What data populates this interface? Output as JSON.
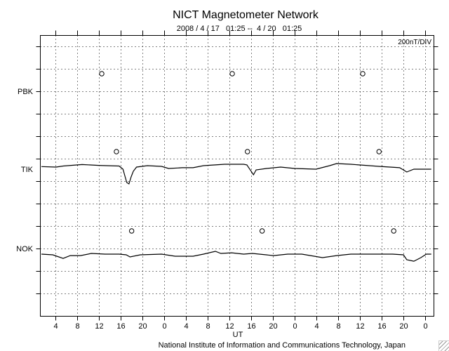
{
  "chart_data": {
    "type": "line",
    "title": "NICT Magnetometer Network",
    "subtitle": "2008 / 4 / 17   01:25 --  4 / 20   01:25",
    "scale_label": "200nT/DIV",
    "xlabel": "UT",
    "credit": "National Institute of Information and Communications Technology, Japan",
    "x_unit": "hours since 2008-04-17 01:25 UT",
    "xlim": [
      0,
      72
    ],
    "y_unit": "nT",
    "nT_per_div": 200,
    "grid": true,
    "x_ticks": [
      {
        "t": 2.583,
        "label": "4"
      },
      {
        "t": 6.583,
        "label": "8"
      },
      {
        "t": 10.583,
        "label": "12"
      },
      {
        "t": 14.583,
        "label": "16"
      },
      {
        "t": 18.583,
        "label": "20"
      },
      {
        "t": 22.583,
        "label": "0"
      },
      {
        "t": 26.583,
        "label": "4"
      },
      {
        "t": 30.583,
        "label": "8"
      },
      {
        "t": 34.583,
        "label": "12"
      },
      {
        "t": 38.583,
        "label": "16"
      },
      {
        "t": 42.583,
        "label": "20"
      },
      {
        "t": 46.583,
        "label": "0"
      },
      {
        "t": 50.583,
        "label": "4"
      },
      {
        "t": 54.583,
        "label": "8"
      },
      {
        "t": 58.583,
        "label": "12"
      },
      {
        "t": 62.583,
        "label": "16"
      },
      {
        "t": 66.583,
        "label": "20"
      },
      {
        "t": 70.583,
        "label": "0"
      }
    ],
    "series": [
      {
        "name": "PBK",
        "local_midnight_markers": [
          11.1,
          35.1,
          59.1
        ],
        "t": [],
        "values": []
      },
      {
        "name": "TIK",
        "local_midnight_markers": [
          13.8,
          37.9,
          62.1
        ],
        "t": [
          0,
          2.7,
          4.0,
          7.5,
          10.5,
          14.3,
          15.0,
          15.4,
          15.7,
          16.1,
          16.5,
          16.9,
          17.5,
          19.5,
          22.1,
          23.4,
          25.9,
          27.9,
          29.8,
          33.7,
          37.2,
          37.8,
          38.5,
          39.0,
          39.5,
          41.4,
          44.0,
          46.6,
          50.5,
          53.0,
          54.3,
          56.9,
          62.1,
          65.9,
          67.2,
          68.5,
          70.8,
          71.7
        ],
        "values": [
          23,
          19,
          28,
          41,
          34,
          28,
          0,
          -69,
          -119,
          -131,
          -69,
          -19,
          19,
          31,
          25,
          6,
          13,
          13,
          31,
          44,
          44,
          38,
          -13,
          -50,
          -6,
          6,
          19,
          6,
          0,
          31,
          50,
          44,
          25,
          13,
          -25,
          0,
          0,
          0
        ]
      },
      {
        "name": "NOK",
        "local_midnight_markers": [
          16.6,
          40.6,
          64.8
        ],
        "t": [
          0,
          2.1,
          4.0,
          5.3,
          7.2,
          9.2,
          11.7,
          14.3,
          15.6,
          16.3,
          18.2,
          22.1,
          24.6,
          27.9,
          29.8,
          32.0,
          33.0,
          35.0,
          37.2,
          38.8,
          42.7,
          45.3,
          47.9,
          51.7,
          54.3,
          56.9,
          59.5,
          64.6,
          66.6,
          67.2,
          68.5,
          69.8,
          70.8,
          71.7
        ],
        "values": [
          -50,
          -56,
          -88,
          -63,
          -63,
          -44,
          -50,
          -50,
          -56,
          -75,
          -56,
          -50,
          -69,
          -69,
          -50,
          -25,
          -44,
          -38,
          -50,
          -44,
          -63,
          -50,
          -50,
          -81,
          -63,
          -50,
          -50,
          -50,
          -56,
          -100,
          -113,
          -81,
          -50,
          -50
        ]
      }
    ]
  }
}
